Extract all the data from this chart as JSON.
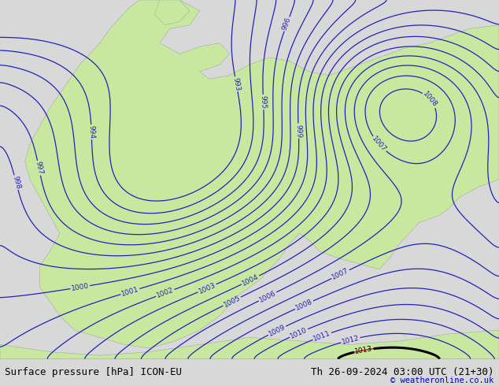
{
  "title_left": "Surface pressure [hPa] ICON-EU",
  "title_right": "Th 26-09-2024 03:00 UTC (21+30)",
  "credit": "© weatheronline.co.uk",
  "bg_color": "#d8d8d8",
  "land_color": "#c8e8a0",
  "blue_contour_color": "#2222bb",
  "red_contour_color": "#cc0000",
  "black_contour_color": "#000000",
  "figsize": [
    6.34,
    4.9
  ],
  "dpi": 100,
  "label_fontsize": 6.5,
  "title_fontsize": 9,
  "credit_fontsize": 7.5
}
